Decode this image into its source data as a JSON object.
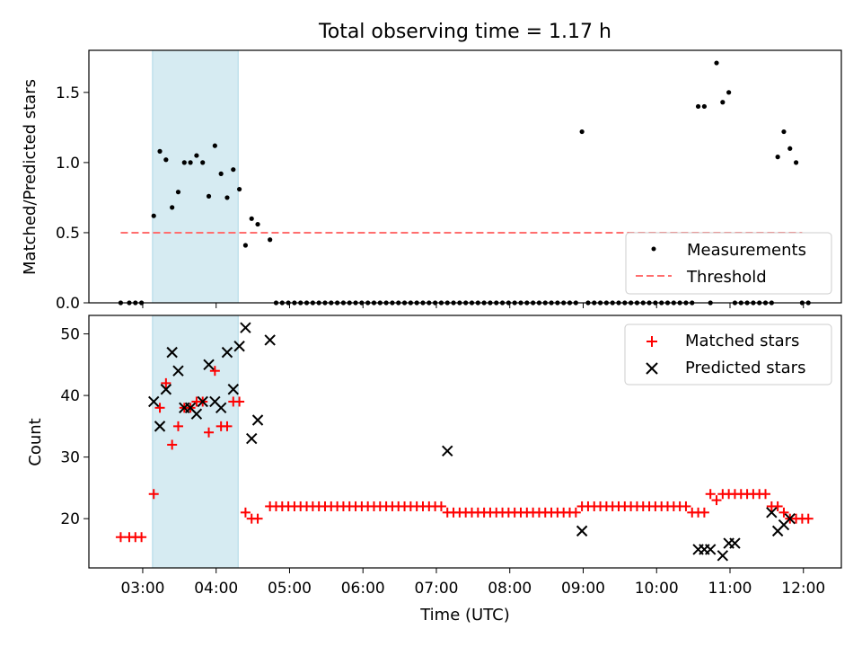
{
  "chart_data": [
    {
      "type": "scatter",
      "title": "Total observing time = 1.17 h",
      "xlabel": "",
      "ylabel": "Matched/Predicted stars",
      "ylim": [
        0,
        1.8
      ],
      "yticks": [
        0.0,
        0.5,
        1.0,
        1.5
      ],
      "xlim": [
        "02:16",
        "12:31"
      ],
      "highlight_span": {
        "start": "03:08",
        "end": "04:18",
        "color": "#add8e6"
      },
      "legend": {
        "position": "lower right",
        "entries": [
          "Measurements",
          "Threshold"
        ]
      },
      "threshold": {
        "name": "Threshold",
        "value": 0.5,
        "start": "02:42",
        "end": "11:59",
        "color": "#ff6e6e"
      },
      "series": [
        {
          "name": "Measurements",
          "color": "#000000",
          "x": [
            "02:42",
            "02:49",
            "02:54",
            "02:59",
            "03:09",
            "03:14",
            "03:19",
            "03:24",
            "03:29",
            "03:34",
            "03:39",
            "03:44",
            "03:49",
            "03:54",
            "03:59",
            "04:04",
            "04:09",
            "04:14",
            "04:19",
            "04:24",
            "04:29",
            "04:34",
            "04:44",
            "04:49",
            "04:54",
            "04:59",
            "05:04",
            "05:09",
            "05:14",
            "05:19",
            "05:24",
            "05:29",
            "05:34",
            "05:39",
            "05:44",
            "05:49",
            "05:54",
            "05:59",
            "06:04",
            "06:09",
            "06:14",
            "06:19",
            "06:24",
            "06:29",
            "06:34",
            "06:39",
            "06:44",
            "06:49",
            "06:54",
            "06:59",
            "07:04",
            "07:09",
            "07:14",
            "07:19",
            "07:24",
            "07:29",
            "07:34",
            "07:39",
            "07:44",
            "07:49",
            "07:54",
            "07:59",
            "08:04",
            "08:09",
            "08:14",
            "08:19",
            "08:24",
            "08:29",
            "08:34",
            "08:39",
            "08:44",
            "08:49",
            "08:54",
            "08:59",
            "09:04",
            "09:09",
            "09:14",
            "09:19",
            "09:24",
            "09:29",
            "09:34",
            "09:39",
            "09:44",
            "09:49",
            "09:54",
            "09:59",
            "10:04",
            "10:09",
            "10:14",
            "10:19",
            "10:24",
            "10:29",
            "10:34",
            "10:39",
            "10:44",
            "10:49",
            "10:54",
            "10:59",
            "11:04",
            "11:09",
            "11:14",
            "11:19",
            "11:24",
            "11:29",
            "11:34",
            "11:39",
            "11:44",
            "11:49",
            "11:54",
            "11:59",
            "12:04"
          ],
          "y": [
            0,
            0,
            0,
            0,
            0.62,
            1.08,
            1.02,
            0.68,
            0.79,
            1.0,
            1.0,
            1.05,
            1.0,
            0.76,
            1.12,
            0.92,
            0.75,
            0.95,
            0.81,
            0.41,
            0.6,
            0.56,
            0.45,
            0,
            0,
            0,
            0,
            0,
            0,
            0,
            0,
            0,
            0,
            0,
            0,
            0,
            0,
            0,
            0,
            0,
            0,
            0,
            0,
            0,
            0,
            0,
            0,
            0,
            0,
            0,
            0,
            0,
            0,
            0,
            0,
            0,
            0,
            0,
            0,
            0,
            0,
            0,
            0,
            0,
            0,
            0,
            0,
            0,
            0,
            0,
            0,
            0,
            0,
            1.22,
            0,
            0,
            0,
            0,
            0,
            0,
            0,
            0,
            0,
            0,
            0,
            0,
            0,
            0,
            0,
            0,
            0,
            0,
            1.4,
            1.4,
            0,
            1.71,
            1.43,
            1.5,
            0,
            0,
            0,
            0,
            0,
            0,
            0,
            1.04,
            1.22,
            1.1,
            1.0,
            0,
            0
          ]
        }
      ]
    },
    {
      "type": "scatter",
      "title": "",
      "xlabel": "Time (UTC)",
      "ylabel": "Count",
      "ylim": [
        12,
        53
      ],
      "yticks": [
        20,
        30,
        40,
        50
      ],
      "xlim": [
        "02:16",
        "12:31"
      ],
      "xticks": [
        "03:00",
        "04:00",
        "05:00",
        "06:00",
        "07:00",
        "08:00",
        "09:00",
        "10:00",
        "11:00",
        "12:00"
      ],
      "highlight_span": {
        "start": "03:08",
        "end": "04:18",
        "color": "#add8e6"
      },
      "legend": {
        "position": "upper right",
        "entries": [
          "Matched stars",
          "Predicted stars"
        ]
      },
      "series": [
        {
          "name": "Matched stars",
          "marker": "plus",
          "color": "#ff0000",
          "x": [
            "02:42",
            "02:49",
            "02:54",
            "02:59",
            "03:09",
            "03:14",
            "03:19",
            "03:24",
            "03:29",
            "03:34",
            "03:39",
            "03:44",
            "03:49",
            "03:54",
            "03:59",
            "04:04",
            "04:09",
            "04:14",
            "04:19",
            "04:24",
            "04:29",
            "04:34",
            "04:44",
            "04:49",
            "04:54",
            "04:59",
            "05:04",
            "05:09",
            "05:14",
            "05:19",
            "05:24",
            "05:29",
            "05:34",
            "05:39",
            "05:44",
            "05:49",
            "05:54",
            "05:59",
            "06:04",
            "06:09",
            "06:14",
            "06:19",
            "06:24",
            "06:29",
            "06:34",
            "06:39",
            "06:44",
            "06:49",
            "06:54",
            "06:59",
            "07:04",
            "07:09",
            "07:14",
            "07:19",
            "07:24",
            "07:29",
            "07:34",
            "07:39",
            "07:44",
            "07:49",
            "07:54",
            "07:59",
            "08:04",
            "08:09",
            "08:14",
            "08:19",
            "08:24",
            "08:29",
            "08:34",
            "08:39",
            "08:44",
            "08:49",
            "08:54",
            "08:59",
            "09:04",
            "09:09",
            "09:14",
            "09:19",
            "09:24",
            "09:29",
            "09:34",
            "09:39",
            "09:44",
            "09:49",
            "09:54",
            "09:59",
            "10:04",
            "10:09",
            "10:14",
            "10:19",
            "10:24",
            "10:29",
            "10:34",
            "10:39",
            "10:44",
            "10:49",
            "10:54",
            "10:59",
            "11:04",
            "11:09",
            "11:14",
            "11:19",
            "11:24",
            "11:29",
            "11:34",
            "11:39",
            "11:44",
            "11:49",
            "11:54",
            "11:59",
            "12:04"
          ],
          "y": [
            17,
            17,
            17,
            17,
            24,
            38,
            42,
            32,
            35,
            38,
            38,
            39,
            39,
            34,
            44,
            35,
            35,
            39,
            39,
            21,
            20,
            20,
            22,
            22,
            22,
            22,
            22,
            22,
            22,
            22,
            22,
            22,
            22,
            22,
            22,
            22,
            22,
            22,
            22,
            22,
            22,
            22,
            22,
            22,
            22,
            22,
            22,
            22,
            22,
            22,
            22,
            21,
            21,
            21,
            21,
            21,
            21,
            21,
            21,
            21,
            21,
            21,
            21,
            21,
            21,
            21,
            21,
            21,
            21,
            21,
            21,
            21,
            21,
            22,
            22,
            22,
            22,
            22,
            22,
            22,
            22,
            22,
            22,
            22,
            22,
            22,
            22,
            22,
            22,
            22,
            22,
            21,
            21,
            21,
            24,
            23,
            24,
            24,
            24,
            24,
            24,
            24,
            24,
            24,
            22,
            22,
            21,
            20,
            20,
            20,
            20
          ]
        },
        {
          "name": "Predicted stars",
          "marker": "x",
          "color": "#000000",
          "x": [
            "03:09",
            "03:14",
            "03:19",
            "03:24",
            "03:29",
            "03:34",
            "03:39",
            "03:44",
            "03:49",
            "03:54",
            "03:59",
            "04:04",
            "04:09",
            "04:14",
            "04:19",
            "04:24",
            "04:29",
            "04:34",
            "04:44",
            "07:09",
            "08:59",
            "10:34",
            "10:39",
            "10:44",
            "10:54",
            "10:59",
            "11:04",
            "11:34",
            "11:39",
            "11:44",
            "11:49"
          ],
          "y": [
            39,
            35,
            41,
            47,
            44,
            38,
            38,
            37,
            39,
            45,
            39,
            38,
            47,
            41,
            48,
            51,
            33,
            36,
            49,
            31,
            18,
            15,
            15,
            15,
            14,
            16,
            16,
            21,
            18,
            19,
            20
          ]
        }
      ]
    }
  ]
}
